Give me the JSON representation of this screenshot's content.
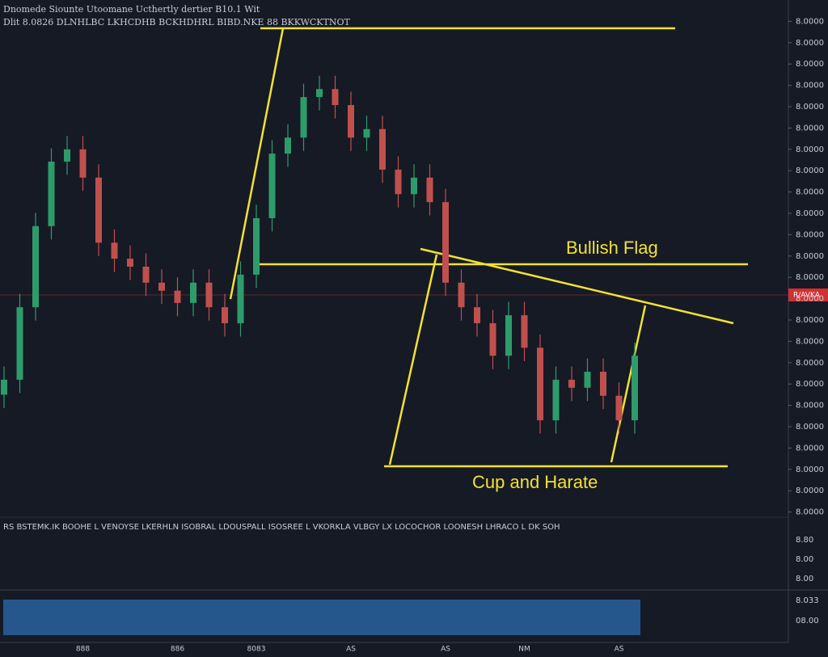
{
  "chart_data": {
    "type": "candlestick",
    "title": "Dnomede Siounte Utoomane Ucthertly dertier B10.1 Wit",
    "subtitle": "Dlit 8.0826 DLNHLBC LKHCDHB BCKHDHRL BIBD.NKE 88 BKKWCKTNOT",
    "categories": [
      null,
      null,
      null,
      null,
      null,
      "888",
      null,
      null,
      null,
      null,
      null,
      "886",
      null,
      null,
      null,
      null,
      "8083",
      null,
      null,
      null,
      null,
      null,
      "AS",
      null,
      null,
      null,
      null,
      null,
      "AS",
      null,
      null,
      null,
      null,
      "NM",
      null,
      null,
      null,
      null,
      null,
      "AS",
      null
    ],
    "open": [
      26.0,
      28.8,
      42.4,
      57.6,
      69.7,
      72.0,
      66.7,
      54.5,
      51.5,
      50.0,
      47.0,
      45.5,
      43.2,
      47.0,
      42.4,
      39.4,
      48.5,
      59.1,
      71.2,
      74.2,
      81.8,
      83.3,
      80.3,
      74.2,
      75.8,
      68.2,
      63.6,
      66.7,
      62.1,
      47.0,
      42.4,
      39.4,
      33.3,
      40.9,
      34.8,
      21.2,
      28.8,
      27.3,
      30.3,
      25.8,
      21.2
    ],
    "high": [
      31.3,
      44.9,
      60.1,
      72.2,
      74.5,
      74.5,
      69.2,
      57.0,
      54.0,
      52.5,
      49.5,
      48.0,
      49.5,
      49.5,
      44.9,
      51.0,
      61.6,
      73.7,
      76.7,
      84.3,
      85.8,
      85.8,
      82.8,
      78.3,
      78.3,
      70.7,
      69.2,
      69.2,
      64.6,
      49.5,
      44.9,
      41.9,
      43.4,
      43.4,
      37.3,
      31.3,
      31.3,
      32.8,
      32.8,
      28.3,
      35.8
    ],
    "low": [
      23.5,
      26.3,
      39.9,
      55.1,
      67.2,
      64.2,
      52.0,
      49.0,
      47.5,
      44.5,
      43.0,
      40.7,
      40.7,
      39.9,
      36.9,
      36.9,
      46.0,
      56.6,
      68.7,
      71.7,
      79.3,
      77.8,
      71.7,
      71.7,
      65.7,
      61.1,
      61.1,
      59.6,
      44.5,
      39.9,
      36.9,
      30.8,
      30.8,
      32.3,
      18.7,
      18.7,
      24.8,
      24.8,
      23.3,
      18.7,
      18.7
    ],
    "close": [
      28.8,
      42.4,
      57.6,
      69.7,
      72.0,
      66.7,
      54.5,
      51.5,
      50.0,
      47.0,
      45.5,
      43.2,
      47.0,
      42.4,
      39.4,
      48.5,
      59.1,
      71.2,
      74.2,
      81.8,
      83.3,
      80.3,
      74.2,
      75.8,
      68.2,
      63.6,
      66.7,
      62.1,
      47.0,
      42.4,
      39.4,
      33.3,
      40.9,
      34.8,
      21.2,
      28.8,
      27.3,
      30.3,
      25.8,
      21.2,
      33.3
    ],
    "up_color": "#2e9c6a",
    "down_color": "#c0504d",
    "ylim": [
      0,
      100
    ],
    "yticks": [
      {
        "value": 4,
        "label": "8.0000"
      },
      {
        "value": 8,
        "label": "8.0000"
      },
      {
        "value": 12,
        "label": "8.0000"
      },
      {
        "value": 16,
        "label": "8.0000"
      },
      {
        "value": 20,
        "label": "8.0000"
      },
      {
        "value": 24,
        "label": "8.0000"
      },
      {
        "value": 28,
        "label": "8.0000"
      },
      {
        "value": 32,
        "label": "8.0000"
      },
      {
        "value": 36,
        "label": "8.0000"
      },
      {
        "value": 40,
        "label": "8.0000"
      },
      {
        "value": 44,
        "label": "8.0000"
      },
      {
        "value": 48,
        "label": "8.0000"
      },
      {
        "value": 52,
        "label": "8.0000"
      },
      {
        "value": 56,
        "label": "8.0000"
      },
      {
        "value": 60,
        "label": "8.0000"
      },
      {
        "value": 64,
        "label": "8.0000"
      },
      {
        "value": 68,
        "label": "8.0000"
      },
      {
        "value": 72,
        "label": "8.0000"
      },
      {
        "value": 76,
        "label": "8.0000"
      },
      {
        "value": 80,
        "label": "8.0000"
      },
      {
        "value": 84,
        "label": "8.0000"
      },
      {
        "value": 88,
        "label": "8.0000"
      },
      {
        "value": 92,
        "label": "8.0000"
      },
      {
        "value": 96,
        "label": "8.0000"
      }
    ],
    "current_price_label": "R/AVKA",
    "annotations": [
      "Bullish Flag",
      "Cup and Harate"
    ],
    "indicator_text": "RS BSTEMK.IK BOOHE L VENOYSE LKERHLN ISOBRAL LDOUSPALL ISOSREE L VKORKLA VLBGY LX LOCOCHOR LOONESH LHRACO L DK SOH",
    "lower_axis_labels": [
      "8.80",
      "8.00",
      "8.00",
      "8.033",
      "08.00"
    ]
  }
}
